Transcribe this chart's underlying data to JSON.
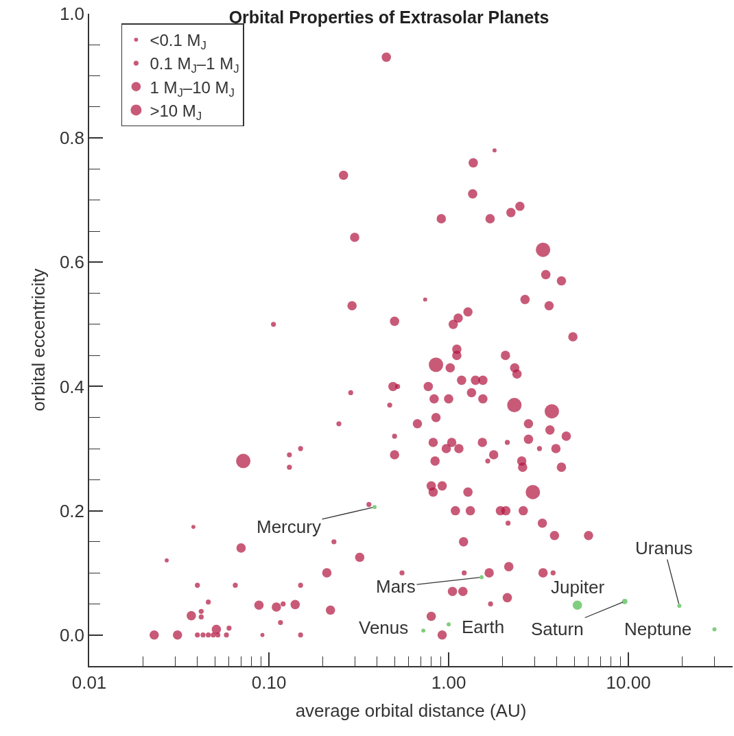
{
  "chart_data": {
    "type": "bubble",
    "title": "Orbital Properties of Extrasolar Planets",
    "xlabel": "average orbital distance (AU)",
    "ylabel": "orbital eccentricity",
    "log": "x",
    "legend": "top left",
    "marker": "circle",
    "xlim": [
      0.01,
      38
    ],
    "ylim": [
      -0.05,
      1.0
    ],
    "xticks": [
      0.01,
      {
        "value": 0.02,
        "label": null
      },
      {
        "value": 0.03,
        "label": null
      },
      {
        "value": 0.04,
        "label": null
      },
      {
        "value": 0.05,
        "label": null
      },
      {
        "value": 0.06,
        "label": null
      },
      {
        "value": 0.07,
        "label": null
      },
      {
        "value": 0.08,
        "label": null
      },
      {
        "value": 0.09,
        "label": null
      },
      {
        "value": 0.1,
        "label": "0.10"
      },
      {
        "value": 0.2,
        "label": null
      },
      {
        "value": 0.3,
        "label": null
      },
      {
        "value": 0.4,
        "label": null
      },
      {
        "value": 0.5,
        "label": null
      },
      {
        "value": 0.6,
        "label": null
      },
      {
        "value": 0.7,
        "label": null
      },
      {
        "value": 0.8,
        "label": null
      },
      {
        "value": 0.9,
        "label": null
      },
      {
        "value": 1,
        "label": "1.00"
      },
      {
        "value": 2,
        "label": null
      },
      {
        "value": 3,
        "label": null
      },
      {
        "value": 4,
        "label": null
      },
      {
        "value": 5,
        "label": null
      },
      {
        "value": 6,
        "label": null
      },
      {
        "value": 7,
        "label": null
      },
      {
        "value": 8,
        "label": null
      },
      {
        "value": 9,
        "label": null
      },
      {
        "value": 10,
        "label": "10.00"
      },
      {
        "value": 20,
        "label": null
      },
      {
        "value": 30,
        "label": null
      }
    ],
    "yticks": [
      {
        "value": 0,
        "label": "0.0"
      },
      {
        "value": 0.05,
        "label": null
      },
      {
        "value": 0.1,
        "label": null
      },
      {
        "value": 0.15,
        "label": null
      },
      {
        "value": 0.2,
        "label": "0.2"
      },
      {
        "value": 0.25,
        "label": null
      },
      {
        "value": 0.3,
        "label": null
      },
      {
        "value": 0.35,
        "label": null
      },
      {
        "value": 0.4,
        "label": "0.4"
      },
      {
        "value": 0.45,
        "label": null
      },
      {
        "value": 0.5,
        "label": null
      },
      {
        "value": 0.55,
        "label": null
      },
      {
        "value": 0.6,
        "label": "0.6"
      },
      {
        "value": 0.65,
        "label": null
      },
      {
        "value": 0.7,
        "label": null
      },
      {
        "value": 0.75,
        "label": null
      },
      {
        "value": 0.8,
        "label": "0.8"
      },
      {
        "value": 0.85,
        "label": null
      },
      {
        "value": 0.9,
        "label": null
      },
      {
        "value": 0.95,
        "label": null
      },
      {
        "value": 1.0,
        "label": "1.0"
      }
    ],
    "series": [
      {
        "name": "<0.1 M$_{J}$",
        "color": "#b0143f",
        "x": [
          0.74,
          1.8,
          0.038,
          0.027,
          0.092
        ],
        "values": [
          0.54,
          0.78,
          0.174,
          0.12,
          0.0
        ],
        "sizes": [
          0.08,
          0.08,
          0.08,
          0.08,
          0.08
        ]
      },
      {
        "name": "0.1 M$_{J}$–1 M$_{J}$",
        "color": "#b0143f",
        "x": [
          0.106,
          0.13,
          0.13,
          0.15,
          0.245,
          0.285,
          0.36,
          0.23,
          0.04,
          0.065,
          0.15,
          0.046,
          0.042,
          0.042,
          0.12,
          0.116,
          0.06,
          0.04,
          0.043,
          0.046,
          0.049,
          0.052,
          0.058,
          0.15,
          0.52,
          0.47,
          0.5,
          2.12,
          1.65,
          2.14,
          0.55,
          1.22,
          1.71,
          3.2,
          3.81
        ],
        "values": [
          0.5,
          0.29,
          0.27,
          0.3,
          0.34,
          0.39,
          0.21,
          0.15,
          0.08,
          0.08,
          0.08,
          0.053,
          0.038,
          0.029,
          0.05,
          0.02,
          0.011,
          0.0,
          0.0,
          0.0,
          0.0,
          0.0,
          0.0,
          0.0,
          0.4,
          0.37,
          0.32,
          0.31,
          0.28,
          0.18,
          0.1,
          0.1,
          0.05,
          0.3,
          0.1
        ],
        "sizes": [
          0.12,
          0.12,
          0.12,
          0.12,
          0.12,
          0.12,
          0.12,
          0.12,
          0.12,
          0.12,
          0.12,
          0.12,
          0.12,
          0.12,
          0.12,
          0.12,
          0.12,
          0.12,
          0.12,
          0.12,
          0.12,
          0.12,
          0.12,
          0.12,
          0.12,
          0.12,
          0.12,
          0.12,
          0.12,
          0.12,
          0.12,
          0.12,
          0.12,
          0.12,
          0.12
        ]
      },
      {
        "name": "1 M$_{J}$–10 M$_{J}$",
        "color": "#b0143f",
        "x": [
          0.45,
          0.26,
          0.3,
          0.29,
          0.07,
          0.32,
          0.21,
          0.037,
          0.088,
          0.11,
          0.14,
          0.051,
          0.023,
          0.031,
          0.5,
          1.28,
          1.13,
          1.06,
          1.11,
          1.11,
          2.07,
          1.02,
          2.33,
          2.4,
          0.49,
          0.77,
          1.18,
          1.41,
          1.55,
          1.34,
          0.83,
          1.0,
          1.55,
          0.85,
          0.67,
          0.82,
          0.97,
          1.04,
          1.14,
          1.54,
          0.5,
          0.84,
          1.78,
          0.8,
          0.82,
          0.92,
          1.28,
          1.09,
          1.32,
          1.94,
          2.08,
          1.21,
          1.68,
          2.16,
          1.05,
          1.2,
          2.12,
          0.22,
          0.8,
          0.92,
          1.37,
          1.36,
          2.49,
          2.22,
          0.91,
          1.7,
          3.47,
          4.24,
          2.66,
          3.62,
          4.91,
          2.78,
          3.66,
          4.51,
          2.78,
          3.95,
          2.55,
          2.58,
          4.24,
          2.6,
          3.32,
          3.88,
          6.0,
          3.35
        ],
        "values": [
          0.93,
          0.74,
          0.64,
          0.53,
          0.14,
          0.125,
          0.1,
          0.031,
          0.048,
          0.045,
          0.049,
          0.009,
          0.0,
          0.0,
          0.505,
          0.52,
          0.51,
          0.5,
          0.46,
          0.45,
          0.45,
          0.43,
          0.43,
          0.42,
          0.4,
          0.4,
          0.41,
          0.41,
          0.41,
          0.39,
          0.38,
          0.38,
          0.38,
          0.35,
          0.34,
          0.31,
          0.3,
          0.31,
          0.3,
          0.31,
          0.29,
          0.28,
          0.29,
          0.24,
          0.23,
          0.24,
          0.23,
          0.2,
          0.2,
          0.2,
          0.2,
          0.15,
          0.1,
          0.11,
          0.07,
          0.07,
          0.06,
          0.04,
          0.03,
          0.0,
          0.76,
          0.71,
          0.69,
          0.68,
          0.67,
          0.67,
          0.58,
          0.57,
          0.54,
          0.53,
          0.48,
          0.34,
          0.33,
          0.32,
          0.315,
          0.3,
          0.28,
          0.27,
          0.27,
          0.2,
          0.18,
          0.16,
          0.16,
          0.1
        ],
        "sizes": [
          0.42,
          0.42,
          0.42,
          0.42,
          0.42,
          0.42,
          0.42,
          0.42,
          0.42,
          0.42,
          0.42,
          0.42,
          0.42,
          0.42,
          0.42,
          0.42,
          0.42,
          0.42,
          0.42,
          0.42,
          0.42,
          0.42,
          0.42,
          0.42,
          0.42,
          0.42,
          0.42,
          0.42,
          0.42,
          0.42,
          0.42,
          0.42,
          0.42,
          0.42,
          0.42,
          0.42,
          0.42,
          0.42,
          0.42,
          0.42,
          0.42,
          0.42,
          0.42,
          0.42,
          0.42,
          0.42,
          0.42,
          0.42,
          0.42,
          0.42,
          0.42,
          0.42,
          0.42,
          0.42,
          0.42,
          0.42,
          0.42,
          0.42,
          0.42,
          0.42,
          0.42,
          0.42,
          0.42,
          0.42,
          0.42,
          0.42,
          0.42,
          0.42,
          0.42,
          0.42,
          0.42,
          0.42,
          0.42,
          0.42,
          0.42,
          0.42,
          0.42,
          0.42,
          0.42,
          0.42,
          0.42,
          0.42,
          0.42,
          0.42
        ]
      },
      {
        "name": ">10 M$_{J}$",
        "color": "#b0143f",
        "x": [
          0.072,
          0.85,
          2.32,
          3.35,
          3.75,
          2.94
        ],
        "values": [
          0.28,
          0.435,
          0.37,
          0.62,
          0.36,
          0.23
        ],
        "sizes": [
          1,
          1,
          1,
          1,
          1,
          1
        ]
      },
      {
        "color": "#4cb848",
        "x": [
          0.387,
          0.723,
          1.0,
          1.524,
          5.2,
          9.54,
          19.2,
          30.1
        ],
        "values": [
          0.206,
          0.007,
          0.017,
          0.093,
          0.048,
          0.054,
          0.047,
          0.009
        ],
        "sizes": [
          0.08,
          0.08,
          0.08,
          0.08,
          0.42,
          0.14,
          0.08,
          0.08
        ]
      }
    ],
    "annotations": [
      {
        "text": "Mercury",
        "x": 0.387,
        "y": 0.206
      },
      {
        "text": "Venus",
        "x": 0.723,
        "y": 0.007
      },
      {
        "text": "Earth",
        "x": 1.0,
        "y": 0.017
      },
      {
        "text": "Mars",
        "x": 1.524,
        "y": 0.093
      },
      {
        "text": "Jupiter",
        "x": 5.2,
        "y": 0.048
      },
      {
        "text": "Saturn",
        "x": 9.54,
        "y": 0.054
      },
      {
        "text": "Uranus",
        "x": 19.2,
        "y": 0.047
      },
      {
        "text": "Neptune",
        "x": 30.1,
        "y": 0.009
      }
    ]
  }
}
